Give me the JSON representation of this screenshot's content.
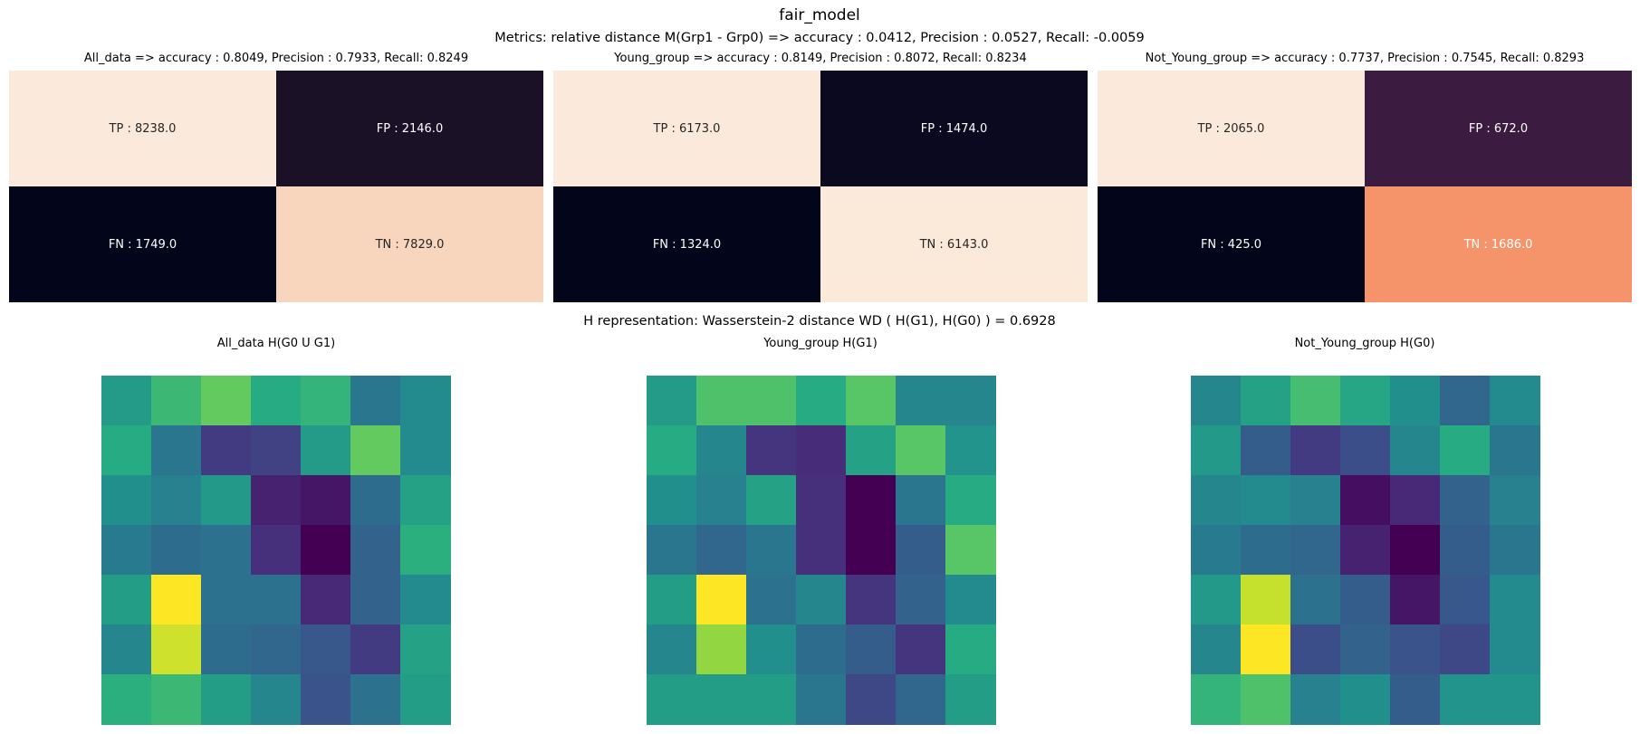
{
  "figure": {
    "suptitle": "fair_model",
    "metrics_title": "Metrics: relative distance M(Grp1 - Grp0) => accuracy : 0.0412, Precision : 0.0527, Recall: -0.0059",
    "h_title": "H representation: Wasserstein-2 distance  WD ( H(G1), H(G0) ) = 0.6928"
  },
  "chart_data": [
    {
      "type": "heatmap",
      "title": "All_data => accuracy : 0.8049, Precision : 0.7933, Recall: 0.8249",
      "cells": [
        {
          "label": "TP : 8238.0",
          "value": 8238.0,
          "color": "#fbeadc",
          "text_color": "#262626"
        },
        {
          "label": "FP : 2146.0",
          "value": 2146.0,
          "color": "#1b1127",
          "text_color": "#ffffff"
        },
        {
          "label": "FN : 1749.0",
          "value": 1749.0,
          "color": "#03051a",
          "text_color": "#ffffff"
        },
        {
          "label": "TN : 7829.0",
          "value": 7829.0,
          "color": "#f8d5bd",
          "text_color": "#262626"
        }
      ]
    },
    {
      "type": "heatmap",
      "title": "Young_group => accuracy : 0.8149, Precision : 0.8072, Recall: 0.8234",
      "cells": [
        {
          "label": "TP : 6173.0",
          "value": 6173.0,
          "color": "#fbeadc",
          "text_color": "#262626"
        },
        {
          "label": "FP : 1474.0",
          "value": 1474.0,
          "color": "#0a0920",
          "text_color": "#ffffff"
        },
        {
          "label": "FN : 1324.0",
          "value": 1324.0,
          "color": "#03051a",
          "text_color": "#ffffff"
        },
        {
          "label": "TN : 6143.0",
          "value": 6143.0,
          "color": "#fbe9da",
          "text_color": "#262626"
        }
      ]
    },
    {
      "type": "heatmap",
      "title": "Not_Young_group => accuracy : 0.7737, Precision : 0.7545, Recall: 0.8293",
      "cells": [
        {
          "label": "TP : 2065.0",
          "value": 2065.0,
          "color": "#fbeadc",
          "text_color": "#262626"
        },
        {
          "label": "FP : 672.0",
          "value": 672.0,
          "color": "#3b1b3f",
          "text_color": "#ffffff"
        },
        {
          "label": "FN : 425.0",
          "value": 425.0,
          "color": "#03051a",
          "text_color": "#ffffff"
        },
        {
          "label": "TN : 1686.0",
          "value": 1686.0,
          "color": "#f5946b",
          "text_color": "#ffffff"
        }
      ]
    },
    {
      "type": "heatmap",
      "title": "All_data  H(G0 U G1)",
      "colormap": "viridis",
      "values": [
        [
          0.55,
          0.68,
          0.76,
          0.62,
          0.66,
          0.4,
          0.48
        ],
        [
          0.62,
          0.4,
          0.18,
          0.2,
          0.55,
          0.76,
          0.48
        ],
        [
          0.5,
          0.44,
          0.54,
          0.1,
          0.06,
          0.36,
          0.58
        ],
        [
          0.42,
          0.36,
          0.38,
          0.14,
          0.0,
          0.32,
          0.64
        ],
        [
          0.56,
          1.0,
          0.38,
          0.38,
          0.12,
          0.32,
          0.48
        ],
        [
          0.46,
          0.93,
          0.36,
          0.34,
          0.28,
          0.18,
          0.58
        ],
        [
          0.64,
          0.68,
          0.56,
          0.46,
          0.26,
          0.38,
          0.56
        ]
      ]
    },
    {
      "type": "heatmap",
      "title": "Young_group  H(G1)",
      "colormap": "viridis",
      "values": [
        [
          0.55,
          0.72,
          0.72,
          0.62,
          0.74,
          0.46,
          0.46
        ],
        [
          0.62,
          0.46,
          0.16,
          0.13,
          0.58,
          0.74,
          0.52
        ],
        [
          0.5,
          0.44,
          0.58,
          0.14,
          0.0,
          0.4,
          0.62
        ],
        [
          0.4,
          0.34,
          0.4,
          0.14,
          0.0,
          0.3,
          0.74
        ],
        [
          0.56,
          1.0,
          0.38,
          0.46,
          0.16,
          0.32,
          0.48
        ],
        [
          0.46,
          0.84,
          0.5,
          0.36,
          0.3,
          0.16,
          0.62
        ],
        [
          0.56,
          0.56,
          0.56,
          0.4,
          0.22,
          0.34,
          0.56
        ]
      ]
    },
    {
      "type": "heatmap",
      "title": "Not_Young_group  H(G0)",
      "colormap": "viridis",
      "values": [
        [
          0.46,
          0.58,
          0.7,
          0.6,
          0.5,
          0.34,
          0.48
        ],
        [
          0.54,
          0.3,
          0.18,
          0.24,
          0.46,
          0.62,
          0.4
        ],
        [
          0.46,
          0.48,
          0.44,
          0.04,
          0.12,
          0.32,
          0.44
        ],
        [
          0.42,
          0.36,
          0.34,
          0.1,
          0.0,
          0.3,
          0.4
        ],
        [
          0.54,
          0.92,
          0.38,
          0.3,
          0.06,
          0.28,
          0.48
        ],
        [
          0.46,
          1.0,
          0.24,
          0.32,
          0.26,
          0.22,
          0.48
        ],
        [
          0.66,
          0.72,
          0.44,
          0.5,
          0.3,
          0.52,
          0.52
        ]
      ]
    }
  ]
}
